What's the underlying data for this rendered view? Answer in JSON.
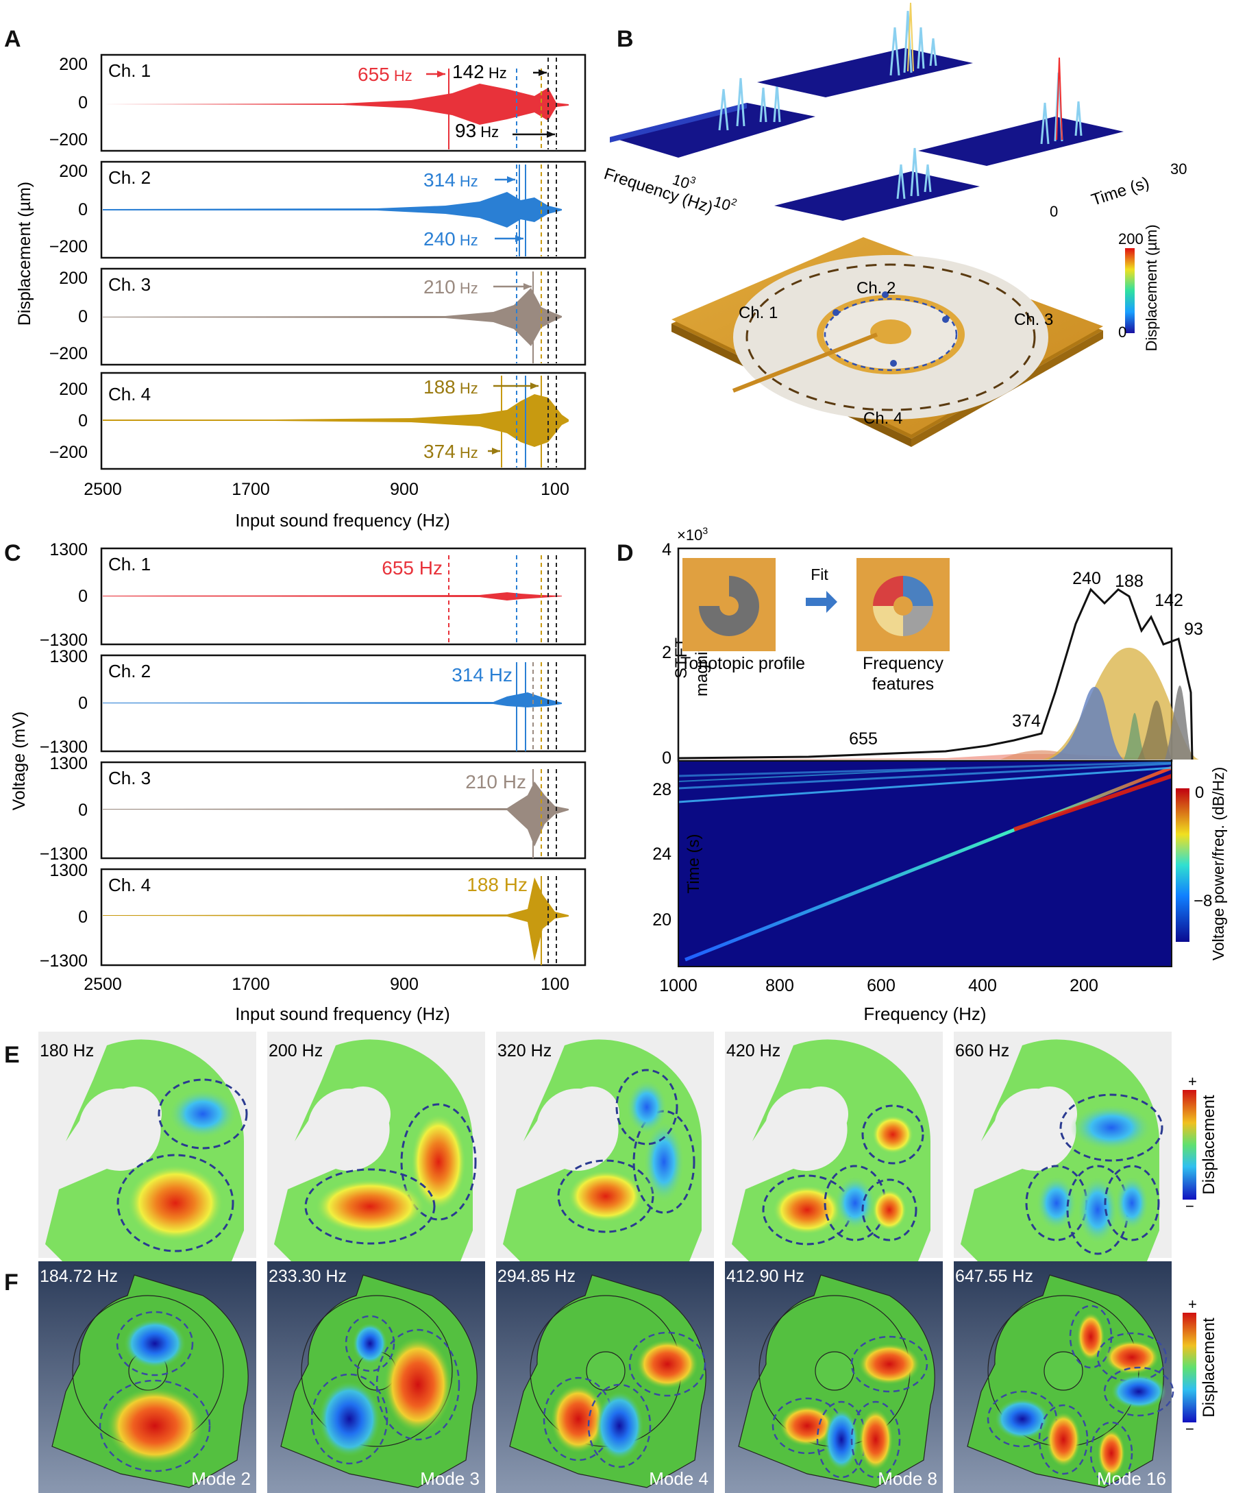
{
  "panels": {
    "A": "A",
    "B": "B",
    "C": "C",
    "D": "D",
    "E": "E",
    "F": "F"
  },
  "colors": {
    "ch1": "#e8323a",
    "ch2": "#2a7fd4",
    "ch3": "#9a8a80",
    "ch4": "#c89a10",
    "ch4text": "#9a7a10"
  },
  "panelA": {
    "ylabel": "Displacement (µm)",
    "xlabel": "Input sound frequency (Hz)",
    "xticks": [
      "2500",
      "1700",
      "900",
      "100"
    ],
    "yticks": [
      "200",
      "0",
      "−200"
    ],
    "channels": [
      {
        "name": "Ch. 1",
        "ann": [
          {
            "num": "655",
            "unit": " Hz"
          },
          {
            "num": "142",
            "unit": " Hz"
          },
          {
            "num": "93",
            "unit": " Hz"
          }
        ]
      },
      {
        "name": "Ch. 2",
        "ann": [
          {
            "num": "314",
            "unit": " Hz"
          },
          {
            "num": "240",
            "unit": " Hz"
          }
        ]
      },
      {
        "name": "Ch. 3",
        "ann": [
          {
            "num": "210",
            "unit": " Hz"
          }
        ]
      },
      {
        "name": "Ch. 4",
        "ann": [
          {
            "num": "188",
            "unit": " Hz"
          },
          {
            "num": "374",
            "unit": " Hz"
          }
        ]
      }
    ]
  },
  "panelB": {
    "freq_label": "Frequency (Hz)",
    "freq_ticks": [
      "10",
      "3",
      "10",
      "2"
    ],
    "time_label": "Time (s)",
    "time_ticks": [
      "0",
      "30"
    ],
    "cbar_label": "Displacement (µm)",
    "cbar_ticks": [
      "200",
      "0"
    ],
    "channels": [
      "Ch. 1",
      "Ch. 2",
      "Ch. 3",
      "Ch. 4"
    ]
  },
  "panelC": {
    "ylabel": "Voltage (mV)",
    "xlabel": "Input sound frequency (Hz)",
    "xticks": [
      "2500",
      "1700",
      "900",
      "100"
    ],
    "yticks": [
      "1300",
      "0",
      "−1300"
    ],
    "channels": [
      {
        "name": "Ch. 1",
        "ann": "655 Hz"
      },
      {
        "name": "Ch. 2",
        "ann": "314 Hz"
      },
      {
        "name": "Ch. 3",
        "ann": "210 Hz"
      },
      {
        "name": "Ch. 4",
        "ann": "188 Hz"
      }
    ]
  },
  "panelD": {
    "yscale": "×10",
    "yscale_exp": "3",
    "ylabel1": "STFT",
    "ylabel2": "magnitude",
    "yticks": [
      "4",
      "2",
      "0"
    ],
    "peaks": [
      "240",
      "188",
      "142",
      "93",
      "374",
      "655"
    ],
    "inset_left": "Tonotopic profile",
    "inset_fit": "Fit",
    "inset_right1": "Frequency",
    "inset_right2": "features",
    "time_label": "Time (s)",
    "time_ticks": [
      "28",
      "24",
      "20"
    ],
    "xlabel": "Frequency (Hz)",
    "xticks": [
      "1000",
      "800",
      "600",
      "400",
      "200"
    ],
    "cbar_label": "Voltage power/freq. (dB/Hz)",
    "cbar_ticks": [
      "0",
      "−8"
    ]
  },
  "panelE": {
    "labels": [
      "180 Hz",
      "200 Hz",
      "320 Hz",
      "420 Hz",
      "660 Hz"
    ],
    "cbar_label": "Displacement",
    "plus": "+",
    "minus": "−"
  },
  "panelF": {
    "labels": [
      "184.72 Hz",
      "233.30 Hz",
      "294.85 Hz",
      "412.90 Hz",
      "647.55 Hz"
    ],
    "modes": [
      "Mode 2",
      "Mode 3",
      "Mode 4",
      "Mode 8",
      "Mode 16"
    ],
    "cbar_label": "Displacement",
    "plus": "+",
    "minus": "−"
  }
}
